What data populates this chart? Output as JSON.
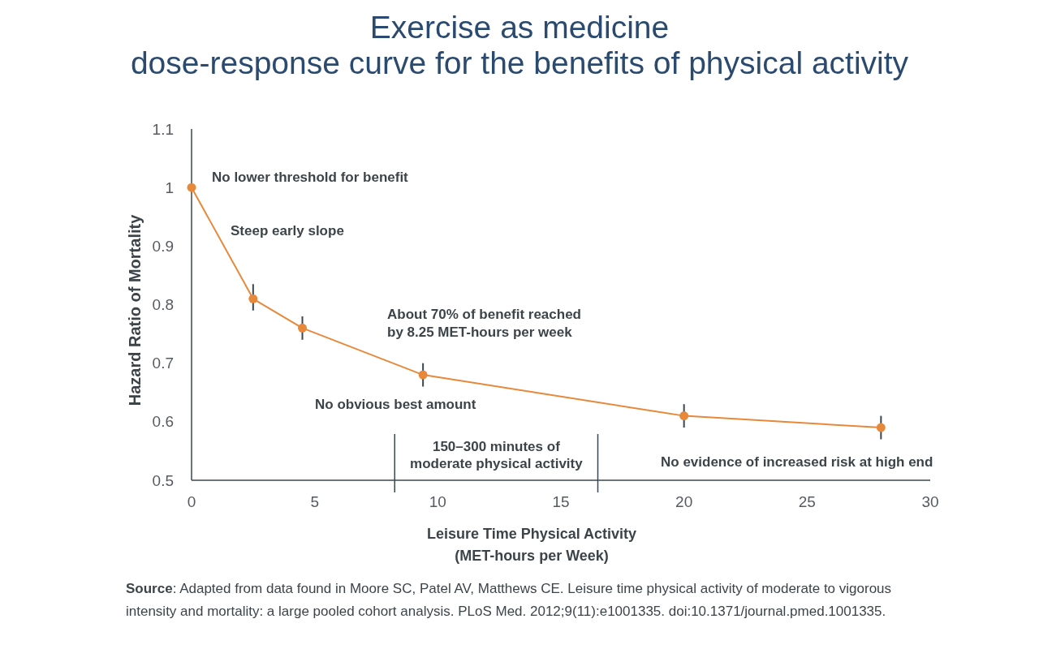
{
  "chart_data": {
    "type": "line",
    "title": "Exercise as medicine\ndose-response curve for the benefits of physical activity",
    "xlabel": "Leisure Time Physical Activity\n(MET-hours per Week)",
    "ylabel": "Hazard Ratio of Mortality",
    "x": [
      0,
      2.5,
      4.5,
      9.4,
      20,
      28
    ],
    "values": [
      1.0,
      0.81,
      0.76,
      0.68,
      0.61,
      0.59
    ],
    "errors": [
      null,
      [
        0.79,
        0.835
      ],
      [
        0.74,
        0.78
      ],
      [
        0.66,
        0.7
      ],
      [
        0.59,
        0.63
      ],
      [
        0.57,
        0.61
      ]
    ],
    "color": "#e8883a",
    "marker": "circle",
    "xlim": [
      0,
      30
    ],
    "xticks": [
      0,
      5,
      10,
      15,
      20,
      25,
      30
    ],
    "ylim": [
      0.5,
      1.1
    ],
    "yticks": [
      0.5,
      0.6,
      0.7,
      0.8,
      0.9,
      1,
      1.1
    ],
    "ref_lines": [
      {
        "axis": "x",
        "value": 8.25,
        "label": "150–300 minutes of\nmoderate physical activity"
      },
      {
        "axis": "x",
        "value": 16.5
      }
    ],
    "annotations": [
      "No lower threshold for benefit",
      "Steep early slope",
      "About 70% of benefit reached\nby 8.25 MET-hours per week",
      "No obvious best amount",
      "No evidence of increased risk at high end",
      "Source: Adapted from data found in Moore SC, Patel AV, Matthews CE. Leisure time physical activity of moderate to vigorous intensity and mortality: a large pooled cohort analysis. PLoS Med. 2012;9(11):e1001335. doi:10.1371/journal.pmed.1001335."
    ]
  }
}
